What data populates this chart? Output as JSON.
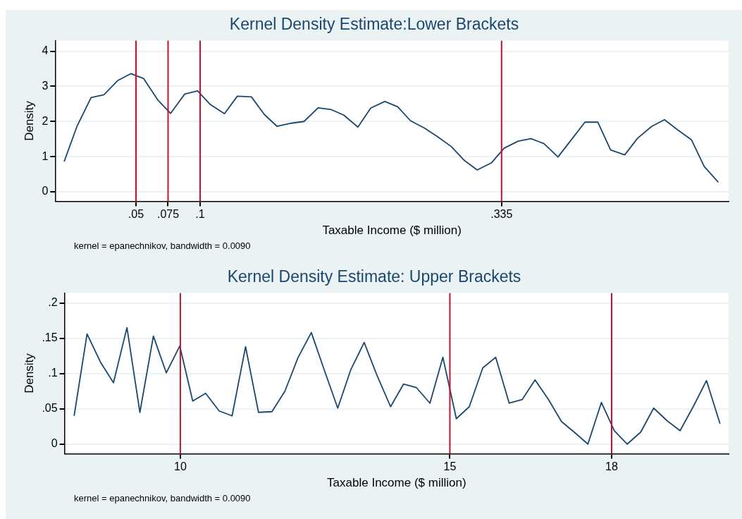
{
  "chart_data": [
    {
      "type": "line",
      "title": "Kernel Density Estimate:Lower Brackets",
      "xlabel": "Taxable Income ($ million)",
      "ylabel": "Density",
      "x": [
        -0.006,
        0.004,
        0.015,
        0.025,
        0.036,
        0.046,
        0.056,
        0.067,
        0.077,
        0.088,
        0.098,
        0.108,
        0.119,
        0.129,
        0.14,
        0.15,
        0.16,
        0.171,
        0.181,
        0.192,
        0.202,
        0.212,
        0.223,
        0.233,
        0.244,
        0.254,
        0.264,
        0.275,
        0.285,
        0.296,
        0.306,
        0.316,
        0.327,
        0.337,
        0.348,
        0.358,
        0.368,
        0.379,
        0.389,
        0.4,
        0.41,
        0.42,
        0.431,
        0.441,
        0.452,
        0.462,
        0.472,
        0.483,
        0.493,
        0.504
      ],
      "series": [
        {
          "color": "#1a476f",
          "values": [
            0.86,
            1.86,
            2.68,
            2.76,
            3.17,
            3.36,
            3.22,
            2.61,
            2.23,
            2.78,
            2.87,
            2.48,
            2.22,
            2.72,
            2.7,
            2.2,
            1.86,
            1.95,
            2.0,
            2.39,
            2.34,
            2.18,
            1.84,
            2.38,
            2.57,
            2.42,
            2.02,
            1.81,
            1.57,
            1.28,
            0.89,
            0.62,
            0.82,
            1.24,
            1.44,
            1.51,
            1.37,
            0.99,
            1.46,
            1.98,
            1.98,
            1.19,
            1.05,
            1.52,
            1.86,
            2.05,
            1.77,
            1.48,
            0.72,
            0.27
          ]
        }
      ],
      "xlim": [
        -0.013,
        0.512
      ],
      "ylim": [
        -0.27,
        4.3
      ],
      "xticks": [
        {
          "value": 0.05,
          "label": ".05"
        },
        {
          "value": 0.075,
          "label": ".075"
        },
        {
          "value": 0.1,
          "label": ".1"
        },
        {
          "value": 0.335,
          "label": ".335"
        }
      ],
      "yticks": [
        0,
        1,
        2,
        3,
        4
      ],
      "ref_lines": [
        {
          "axis": "x",
          "value": 0.05,
          "color": "#c8102e"
        },
        {
          "axis": "x",
          "value": 0.075,
          "color": "#c8102e"
        },
        {
          "axis": "x",
          "value": 0.1,
          "color": "#c8102e"
        },
        {
          "axis": "x",
          "value": 0.335,
          "color": "#c8102e"
        }
      ],
      "annotations": [
        "kernel = epanechnikov, bandwidth = 0.0090"
      ],
      "grid": "y",
      "legend": false,
      "marker": "none"
    },
    {
      "type": "line",
      "title": "Kernel Density Estimate: Upper Brackets",
      "xlabel": "Taxable Income ($ million)",
      "ylabel": "Density",
      "x": [
        8.03,
        8.27,
        8.52,
        8.76,
        9.01,
        9.25,
        9.5,
        9.74,
        9.99,
        10.23,
        10.47,
        10.72,
        10.96,
        11.21,
        11.45,
        11.7,
        11.94,
        12.18,
        12.43,
        12.67,
        12.92,
        13.16,
        13.41,
        13.65,
        13.9,
        14.14,
        14.38,
        14.63,
        14.87,
        15.12,
        15.36,
        15.61,
        15.85,
        16.1,
        16.34,
        16.58,
        16.83,
        17.07,
        17.32,
        17.56,
        17.81,
        18.05,
        18.29,
        18.54,
        18.78,
        19.03,
        19.27,
        19.52,
        19.76,
        20.01
      ],
      "series": [
        {
          "color": "#1a476f",
          "values": [
            0.04,
            0.156,
            0.116,
            0.087,
            0.165,
            0.045,
            0.153,
            0.101,
            0.139,
            0.061,
            0.072,
            0.047,
            0.04,
            0.138,
            0.045,
            0.046,
            0.075,
            0.122,
            0.158,
            0.105,
            0.051,
            0.105,
            0.144,
            0.097,
            0.053,
            0.085,
            0.08,
            0.058,
            0.123,
            0.036,
            0.053,
            0.108,
            0.123,
            0.058,
            0.063,
            0.091,
            0.063,
            0.032,
            0.016,
            0.0,
            0.059,
            0.019,
            0.0,
            0.017,
            0.051,
            0.033,
            0.019,
            0.054,
            0.09,
            0.029
          ]
        }
      ],
      "xlim": [
        7.853,
        20.17
      ],
      "ylim": [
        -0.0136,
        0.214
      ],
      "xticks": [
        10,
        15,
        18
      ],
      "yticks": [
        {
          "value": 0,
          "label": "0"
        },
        {
          "value": 0.05,
          "label": ".05"
        },
        {
          "value": 0.1,
          "label": ".1"
        },
        {
          "value": 0.15,
          "label": ".15"
        },
        {
          "value": 0.2,
          "label": ".2"
        }
      ],
      "ref_lines": [
        {
          "axis": "x",
          "value": 10,
          "color": "#c8102e"
        },
        {
          "axis": "x",
          "value": 15,
          "color": "#c8102e"
        },
        {
          "axis": "x",
          "value": 18,
          "color": "#c8102e"
        }
      ],
      "annotations": [
        "kernel = epanechnikov, bandwidth = 0.0090"
      ],
      "grid": "y",
      "legend": false,
      "marker": "none"
    }
  ]
}
